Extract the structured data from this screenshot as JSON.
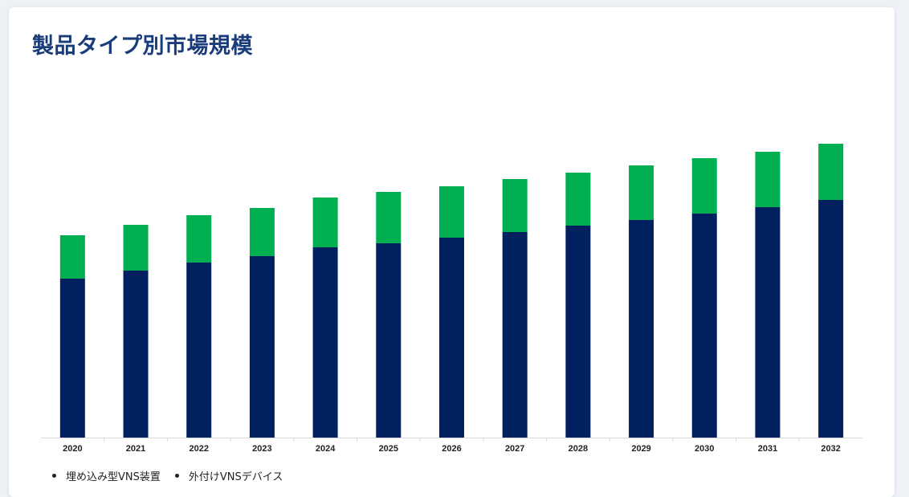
{
  "title": "製品タイプ別市場規模",
  "colors": {
    "series_0": "#00205f",
    "series_1": "#00b050",
    "axis": "#d9d9d9",
    "tick_text": "#222222"
  },
  "chart_data": {
    "type": "bar",
    "stacked": true,
    "categories": [
      "2020",
      "2021",
      "2022",
      "2023",
      "2024",
      "2025",
      "2026",
      "2027",
      "2028",
      "2029",
      "2030",
      "2031",
      "2032"
    ],
    "series": [
      {
        "name": "埋め込み型VNS装置",
        "values": [
          198,
          208,
          218,
          226,
          237,
          242,
          249,
          256,
          264,
          271,
          279,
          287,
          296
        ]
      },
      {
        "name": "外付けVNSデバイス",
        "values": [
          54,
          57,
          59,
          60,
          62,
          64,
          64,
          66,
          66,
          68,
          69,
          69,
          70
        ]
      }
    ],
    "ylim": [
      0,
      400
    ],
    "grid": false,
    "legend": "bottom-left"
  }
}
